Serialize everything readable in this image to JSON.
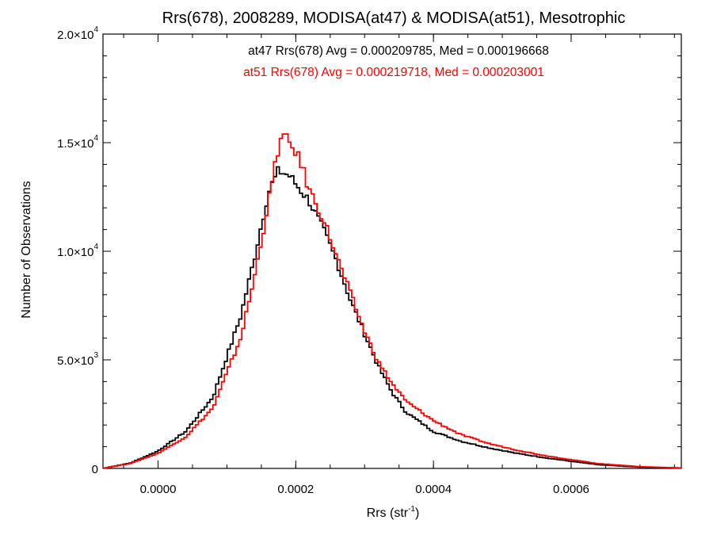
{
  "chart_data": {
    "type": "line",
    "step": true,
    "title": "Rrs(678), 2008289, MODISA(at47) & MODISA(at51), Mesotrophic",
    "xlabel_base": "Rrs (str",
    "xlabel_sup": "-1",
    "xlabel_end": ")",
    "ylabel": "Number of Observations",
    "xlim": [
      -8e-05,
      0.00076
    ],
    "ylim": [
      0,
      20000
    ],
    "x_ticks": [
      {
        "value": 0.0,
        "label": "0.0000"
      },
      {
        "value": 0.0002,
        "label": "0.0002"
      },
      {
        "value": 0.0004,
        "label": "0.0004"
      },
      {
        "value": 0.0006,
        "label": "0.0006"
      }
    ],
    "y_ticks": [
      {
        "value": 0,
        "base": "0",
        "exp": ""
      },
      {
        "value": 5000,
        "base": "5.0×10",
        "exp": "3"
      },
      {
        "value": 10000,
        "base": "1.0×10",
        "exp": "4"
      },
      {
        "value": 15000,
        "base": "1.5×10",
        "exp": "4"
      },
      {
        "value": 20000,
        "base": "2.0×10",
        "exp": "4"
      }
    ],
    "annotations": [
      {
        "text": "at47 Rrs(678) Avg = 0.000209785, Med = 0.000196668",
        "color": "#000000"
      },
      {
        "text": "at51 Rrs(678) Avg = 0.000219718, Med = 0.000203001",
        "color": "#ff0000"
      }
    ],
    "series": [
      {
        "color": "#000000",
        "x": [
          -8e-05,
          -4e-05,
          0.0,
          4e-05,
          8e-05,
          0.00012,
          0.00014,
          0.00016,
          0.000175,
          0.00019,
          0.0002,
          0.00021,
          0.00022,
          0.00024,
          0.00026,
          0.00028,
          0.0003,
          0.00032,
          0.00034,
          0.00036,
          0.0004,
          0.00044,
          0.00048,
          0.00052,
          0.00056,
          0.0006,
          0.00064,
          0.0007,
          0.00076
        ],
        "y": [
          0,
          250,
          800,
          1700,
          3300,
          7000,
          9700,
          12700,
          13700,
          13500,
          13100,
          12700,
          12300,
          11000,
          9500,
          7700,
          6200,
          4700,
          3500,
          2600,
          1700,
          1250,
          950,
          700,
          500,
          330,
          170,
          60,
          20
        ]
      },
      {
        "color": "#ff0000",
        "x": [
          -8e-05,
          -4e-05,
          0.0,
          4e-05,
          8e-05,
          0.00012,
          0.00014,
          0.00016,
          0.000175,
          0.00018,
          0.00019,
          0.0002,
          0.00021,
          0.00022,
          0.00024,
          0.00026,
          0.00028,
          0.0003,
          0.00032,
          0.00034,
          0.00036,
          0.0004,
          0.00044,
          0.00048,
          0.00052,
          0.00056,
          0.0006,
          0.00064,
          0.0007,
          0.00076
        ],
        "y": [
          0,
          230,
          700,
          1450,
          2800,
          6000,
          8800,
          12200,
          14800,
          15300,
          15000,
          14600,
          13800,
          12800,
          11500,
          9700,
          8000,
          6300,
          4900,
          3900,
          3100,
          2200,
          1550,
          1150,
          850,
          600,
          400,
          220,
          80,
          20
        ]
      }
    ]
  }
}
